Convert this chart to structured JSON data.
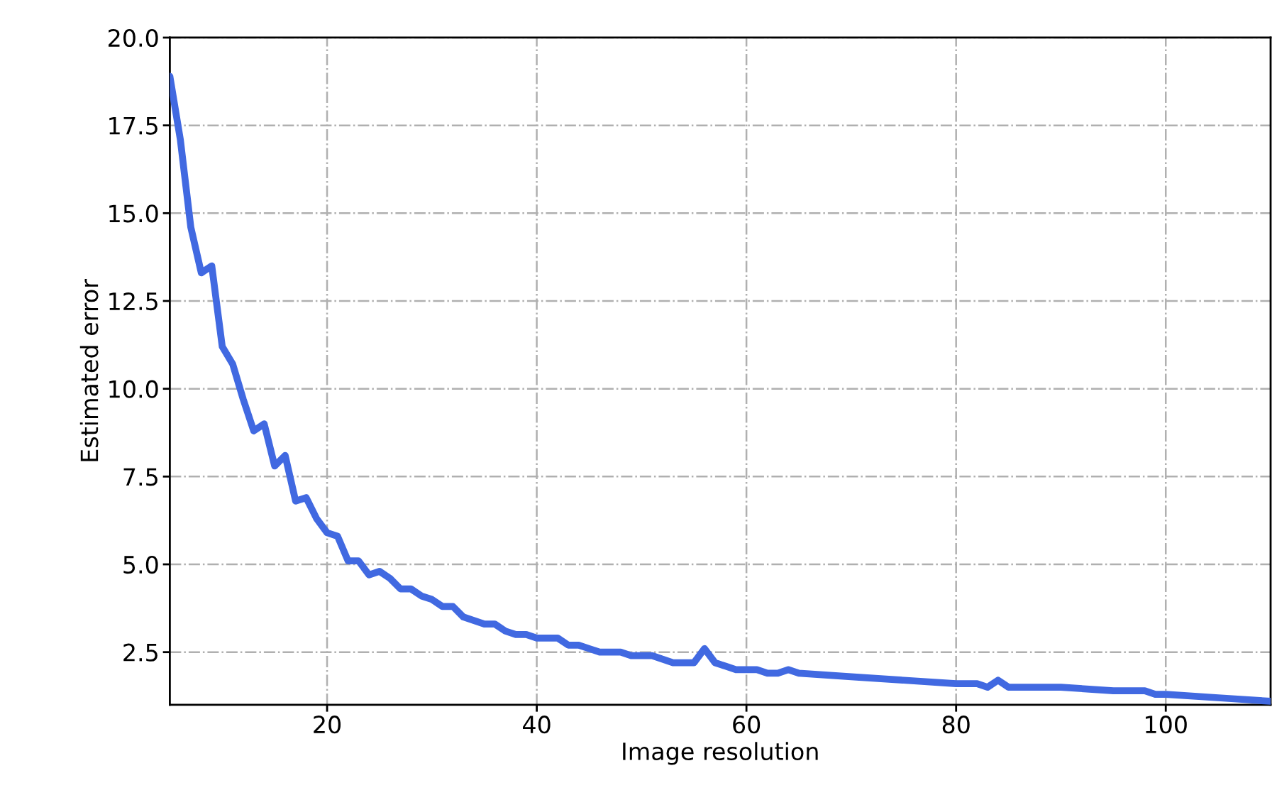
{
  "chart_data": {
    "type": "line",
    "xlabel": "Image resolution",
    "ylabel": "Estimated error",
    "x": [
      5,
      6,
      7,
      8,
      9,
      10,
      11,
      12,
      13,
      14,
      15,
      16,
      17,
      18,
      19,
      20,
      21,
      22,
      23,
      24,
      25,
      26,
      27,
      28,
      29,
      30,
      31,
      32,
      33,
      34,
      35,
      36,
      37,
      38,
      39,
      40,
      41,
      42,
      43,
      44,
      45,
      46,
      47,
      48,
      49,
      50,
      51,
      52,
      53,
      54,
      55,
      56,
      57,
      58,
      59,
      60,
      61,
      62,
      63,
      64,
      65,
      70,
      75,
      80,
      82,
      83,
      84,
      85,
      90,
      95,
      97,
      98,
      99,
      100,
      105,
      110
    ],
    "series": [
      {
        "color": "#4169e1",
        "values": [
          18.9,
          17.1,
          14.6,
          13.3,
          13.5,
          11.2,
          10.7,
          9.7,
          8.8,
          9.0,
          7.8,
          8.1,
          6.8,
          6.9,
          6.3,
          5.9,
          5.8,
          5.1,
          5.1,
          4.7,
          4.8,
          4.6,
          4.3,
          4.3,
          4.1,
          4.0,
          3.8,
          3.8,
          3.5,
          3.4,
          3.3,
          3.3,
          3.1,
          3.0,
          3.0,
          2.9,
          2.9,
          2.9,
          2.7,
          2.7,
          2.6,
          2.5,
          2.5,
          2.5,
          2.4,
          2.4,
          2.4,
          2.3,
          2.2,
          2.2,
          2.2,
          2.6,
          2.2,
          2.1,
          2.0,
          2.0,
          2.0,
          1.9,
          1.9,
          2.0,
          1.9,
          1.8,
          1.7,
          1.6,
          1.6,
          1.5,
          1.7,
          1.5,
          1.5,
          1.4,
          1.4,
          1.4,
          1.3,
          1.3,
          1.2,
          1.1
        ]
      }
    ],
    "xlim": [
      5,
      110
    ],
    "ylim": [
      1.0,
      20.0
    ],
    "xticks": [
      20,
      40,
      60,
      80,
      100
    ],
    "yticks": [
      {
        "value": 2.5,
        "label": "2.5"
      },
      {
        "value": 5,
        "label": "5.0"
      },
      {
        "value": 7.5,
        "label": "7.5"
      },
      {
        "value": 10,
        "label": "10.0"
      },
      {
        "value": 12.5,
        "label": "12.5"
      },
      {
        "value": 15,
        "label": "15.0"
      },
      {
        "value": 17.5,
        "label": "17.5"
      },
      {
        "value": 20,
        "label": "20.0"
      }
    ],
    "grid": true,
    "line_style": "solid",
    "marker": "none"
  }
}
